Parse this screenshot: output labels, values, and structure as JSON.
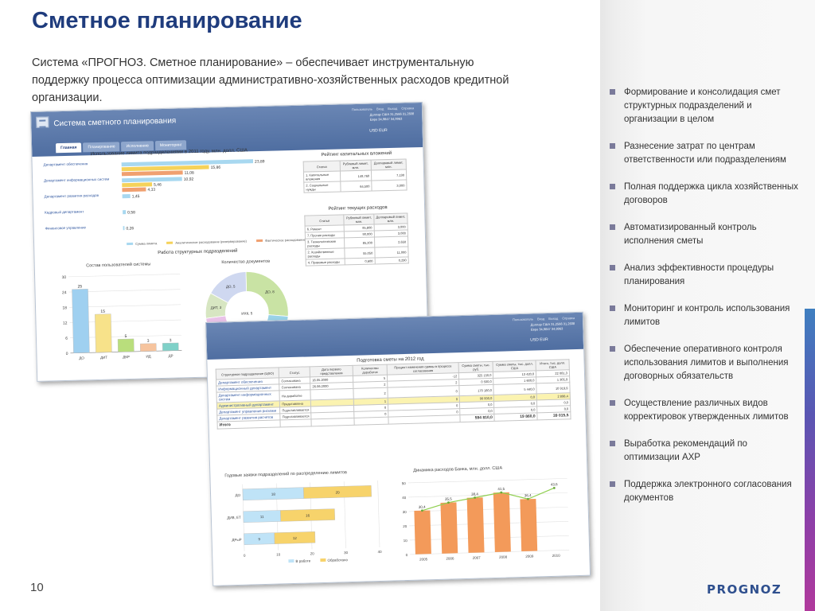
{
  "slide": {
    "title": "Сметное планирование",
    "intro": "Система «ПРОГНОЗ. Сметное планирование» – обеспечивает инструментальную поддержку процесса оптимизации административно-хозяйственных расходов кредитной организации.",
    "page_number": "10",
    "logo": "PROGNOZ"
  },
  "bullets": [
    "Формирование и консолидация смет структурных подразделений и организации в целом",
    "Разнесение затрат по центрам ответственности или подразделениям",
    "Полная поддержка цикла хозяйственных договоров",
    "Автоматизированный контроль исполнения сметы",
    "Анализ эффективности процедуры планирования",
    "Мониторинг и контроль использования лимитов",
    "Обеспечение оперативного контроля использования лимитов и выполнения договорных обязательств",
    "Осуществление различных видов корректировок утвержденных лимитов",
    "Выработка рекомендаций по оптимизации АХР",
    "Поддержка электронного согласования документов"
  ],
  "colors": {
    "title": "#1f3c7d",
    "header": "#5676a8",
    "bullet": "#7a7a9a"
  },
  "app1": {
    "title": "Система сметного планирования",
    "header_links": [
      "Пользователь",
      "Вход",
      "Выход",
      "Справка"
    ],
    "header_info": [
      "Доллар США 31,2566 31,2608",
      "Евро 34,9847 34,9963"
    ],
    "currency": "USD EUR",
    "tabs": [
      "Главная",
      "Планирование",
      "Исполнение",
      "Мониторинг"
    ],
    "limits": {
      "title": "Использование лимита подразделениями в 2011 году, млн. долл. США",
      "departments": [
        "Департамент обеспечения",
        "Департамент информационных систем",
        "Департамент развития расходов",
        "Кадровый департамент",
        "Финансовое управление"
      ],
      "legend": [
        "Сумма лимита",
        "Аналитическое расходование (резервирование)",
        "Фактическое расходование"
      ],
      "colors": [
        "#a8d8f0",
        "#f5d25a",
        "#f0a070"
      ]
    },
    "rating_capital": {
      "title": "Рейтинг капитальных вложений",
      "columns": [
        "Статья",
        "Рублевый лимит, млн.",
        "Долларовый лимит, млн."
      ],
      "rows": [
        [
          "1. Капитальные вложения",
          "149,760",
          "7,190"
        ],
        [
          "2. Социальные нужды",
          "64,500",
          "3,000"
        ]
      ]
    },
    "rating_current": {
      "title": "Рейтинг текущих расходов",
      "columns": [
        "Статья",
        "Рублевый лимит, млн.",
        "Долларовый лимит, млн."
      ],
      "rows": [
        [
          "6. Ремонт",
          "95,800",
          "3,000"
        ],
        [
          "7. Прочие расходы",
          "90,000",
          "3,000"
        ],
        [
          "3. Технологические расходы",
          "85,200",
          "2,650"
        ],
        [
          "2. Хозяйственные расходы",
          "55,050",
          "11,000"
        ],
        [
          "4. Правовые расходы",
          "0,600",
          "0,290"
        ]
      ]
    },
    "work_title": "Работа структурных подразделений",
    "users_chart": {
      "title": "Состав пользователей системы"
    },
    "docs_chart": {
      "title": "Количество документов",
      "options": [
        "За месяц",
        "За квартал",
        "За год"
      ]
    }
  },
  "app2": {
    "header_links": [
      "Пользователь",
      "Вход",
      "Выход",
      "Справка"
    ],
    "header_info": [
      "Доллар США 31,2566 31,2608",
      "Евро 34,9847 34,9963"
    ],
    "currency": "USD EUR",
    "table": {
      "title": "Подготовка сметы на 2012 год",
      "columns": [
        "Структурное подразделение (ЦФО)",
        "Статус",
        "Дата первого представления",
        "Количество доработок",
        "Процент изменения суммы в процессе согласования",
        "Сумма сметы, тыс. руб.",
        "Сумма сметы, тыс. долл. США",
        "Итого, тыс. долл. США"
      ],
      "rows": [
        [
          "Департамент обеспечения",
          "Согласована",
          "16.05.2000",
          "5",
          "-12",
          "325 150,0",
          "13 420,0",
          "22 081,3"
        ],
        [
          "Информационный департамент",
          "Согласована",
          "26.06.2000",
          "2",
          "2",
          "0 500,0",
          "1 600,0",
          "1 305,9"
        ],
        [
          "Департамент информационных систем",
          "На доработке",
          "",
          "2",
          "0",
          "170 180,0",
          "5 440,0",
          "10 919,9"
        ],
        [
          "Административный департамент",
          "Представлена",
          "",
          "1",
          "0",
          "90 000,0",
          "0,0",
          "2 898,4"
        ],
        [
          "Департамент управления рисками",
          "Подготавливается",
          "",
          "0",
          "0",
          "0,0",
          "0,0",
          "0,0"
        ],
        [
          "Департамент развития расчетов",
          "Подготавливается",
          "",
          "0",
          "0",
          "0,0",
          "0,0",
          "0,0"
        ]
      ],
      "total": [
        "Итого",
        "",
        "",
        "",
        "",
        "594 810,0",
        "19 860,0",
        "39 015,5"
      ]
    },
    "requests_chart": {
      "title": "Годовые заявки подразделений по распределению лимитов"
    },
    "dynamics_chart": {
      "title": "Динамика расходов Банка, млн. долл. США"
    }
  },
  "chart_data": [
    {
      "type": "bar",
      "title": "Использование лимита подразделениями в 2011 году, млн. долл. США",
      "orientation": "horizontal",
      "categories": [
        "Департамент обеспечения",
        "Департамент информационных систем",
        "Департамент развития расходов",
        "Кадровый департамент",
        "Финансовое управление"
      ],
      "series": [
        {
          "name": "Сумма лимита",
          "values": [
            23.89,
            10.92,
            1.45,
            0.58,
            0.26
          ]
        },
        {
          "name": "Аналитическое расходование (резервирование)",
          "values": [
            15.86,
            5.46,
            0,
            0,
            0
          ]
        },
        {
          "name": "Фактическое расходование",
          "values": [
            11.08,
            4.33,
            0,
            0,
            0
          ]
        }
      ],
      "labels": [
        "23,89",
        "15,86",
        "11,08",
        "10,92",
        "5,46",
        "4,33",
        "1,45",
        "0,58",
        "0,26"
      ]
    },
    {
      "type": "bar",
      "title": "Состав пользователей системы",
      "categories": [
        "ДО",
        "ДИТ",
        "ДКР",
        "ИД",
        "ДР"
      ],
      "values": [
        25,
        15,
        5,
        3,
        3
      ],
      "ylim": [
        0,
        30
      ],
      "yticks": [
        0,
        6,
        12,
        18,
        24,
        30
      ],
      "colors": [
        "#9fd0f0",
        "#f7e28a",
        "#b9de7c",
        "#f6c49e",
        "#7fd1c8"
      ]
    },
    {
      "type": "pie",
      "title": "Количество документов",
      "labels": [
        "ДО, 8",
        "ДР, 6",
        "ДКР, 2",
        "ДИТ, 6",
        "ДИТ, 3",
        "ДО, 5"
      ],
      "values": [
        8,
        6,
        2,
        6,
        3,
        5
      ],
      "center_label": "ИХК, 5",
      "colors": [
        "#c9e3a4",
        "#9ad3e8",
        "#f2c6a8",
        "#e9c2e8",
        "#d7e6c2",
        "#cfd8f0"
      ]
    },
    {
      "type": "bar",
      "title": "Годовые заявки подразделений по распределению лимитов",
      "orientation": "horizontal",
      "categories": [
        "ДО",
        "ДИВ, ЕТ",
        "ДРыР"
      ],
      "series": [
        {
          "name": "В работе",
          "values": [
            18,
            11,
            9
          ]
        },
        {
          "name": "Обработано",
          "values": [
            20,
            16,
            12
          ]
        }
      ],
      "xlim": [
        0,
        40
      ],
      "xticks": [
        0,
        10,
        20,
        30,
        40
      ]
    },
    {
      "type": "bar",
      "title": "Динамика расходов Банка, млн. долл. США",
      "categories": [
        "2005",
        "2006",
        "2007",
        "2008",
        "2009",
        "2010"
      ],
      "values": [
        30.4,
        35.5,
        38.4,
        41.5,
        36.4,
        null
      ],
      "line_values": [
        30.4,
        35.5,
        38.4,
        41.5,
        36.4,
        43.6
      ],
      "labels": [
        "30,4",
        "35,5",
        "38,4",
        "41,5",
        "36,4",
        "43,6"
      ],
      "ylim": [
        0,
        50
      ],
      "yticks": [
        0,
        10,
        20,
        30,
        40,
        50
      ]
    }
  ]
}
